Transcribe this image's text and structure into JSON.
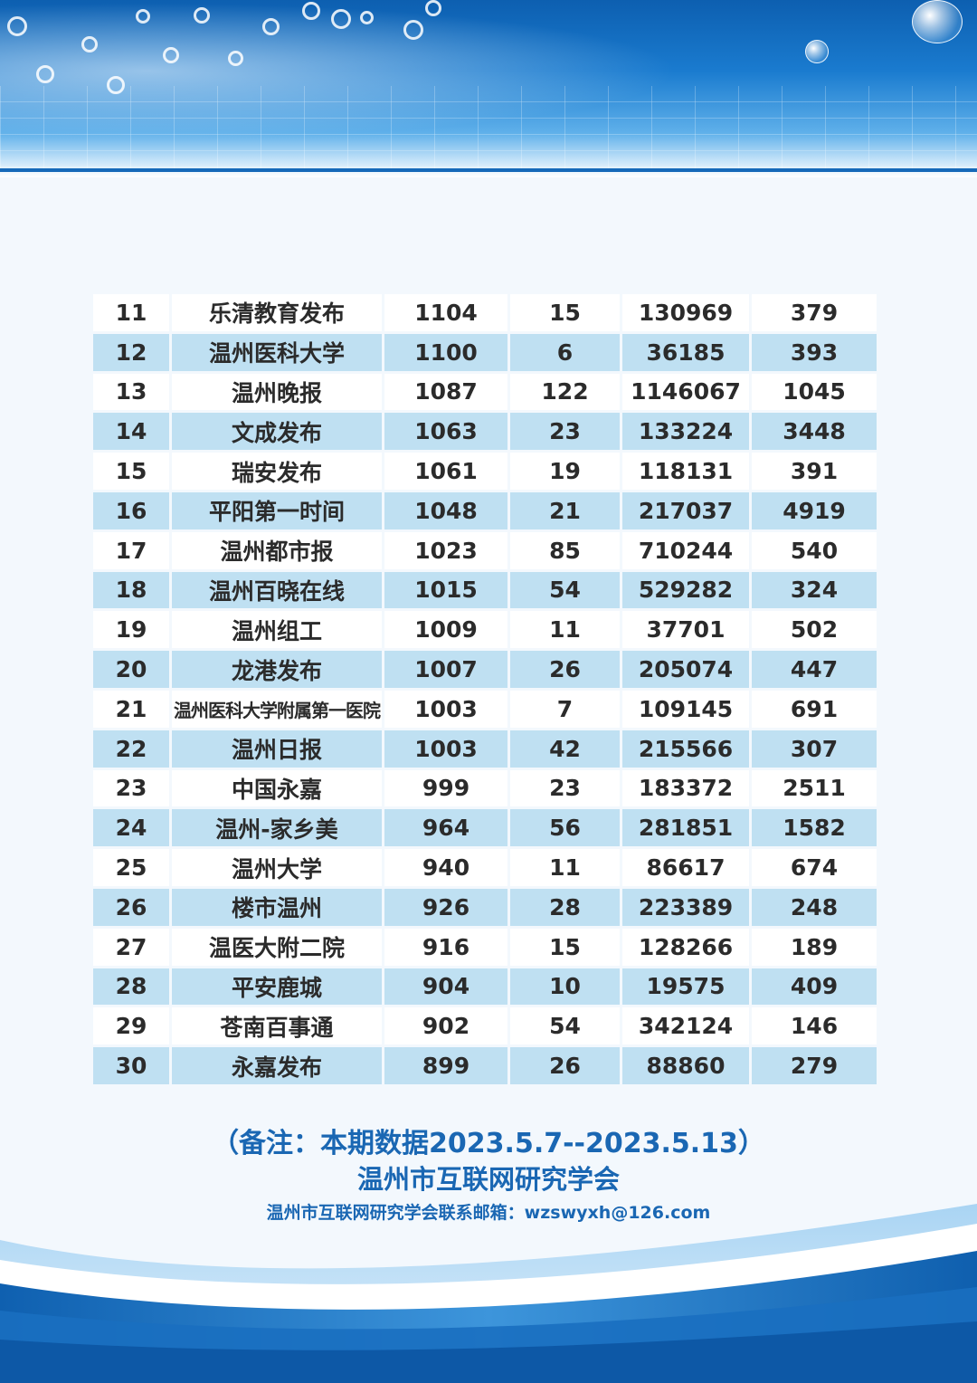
{
  "table": {
    "rows": [
      {
        "rank": "11",
        "name": "乐清教育发布",
        "c2": "1104",
        "c3": "15",
        "c4": "130969",
        "c5": "379"
      },
      {
        "rank": "12",
        "name": "温州医科大学",
        "c2": "1100",
        "c3": "6",
        "c4": "36185",
        "c5": "393"
      },
      {
        "rank": "13",
        "name": "温州晚报",
        "c2": "1087",
        "c3": "122",
        "c4": "1146067",
        "c5": "1045"
      },
      {
        "rank": "14",
        "name": "文成发布",
        "c2": "1063",
        "c3": "23",
        "c4": "133224",
        "c5": "3448"
      },
      {
        "rank": "15",
        "name": "瑞安发布",
        "c2": "1061",
        "c3": "19",
        "c4": "118131",
        "c5": "391"
      },
      {
        "rank": "16",
        "name": "平阳第一时间",
        "c2": "1048",
        "c3": "21",
        "c4": "217037",
        "c5": "4919"
      },
      {
        "rank": "17",
        "name": "温州都市报",
        "c2": "1023",
        "c3": "85",
        "c4": "710244",
        "c5": "540"
      },
      {
        "rank": "18",
        "name": "温州百晓在线",
        "c2": "1015",
        "c3": "54",
        "c4": "529282",
        "c5": "324"
      },
      {
        "rank": "19",
        "name": "温州组工",
        "c2": "1009",
        "c3": "11",
        "c4": "37701",
        "c5": "502"
      },
      {
        "rank": "20",
        "name": "龙港发布",
        "c2": "1007",
        "c3": "26",
        "c4": "205074",
        "c5": "447"
      },
      {
        "rank": "21",
        "name": "温州医科大学附属第一医院",
        "c2": "1003",
        "c3": "7",
        "c4": "109145",
        "c5": "691"
      },
      {
        "rank": "22",
        "name": "温州日报",
        "c2": "1003",
        "c3": "42",
        "c4": "215566",
        "c5": "307"
      },
      {
        "rank": "23",
        "name": "中国永嘉",
        "c2": "999",
        "c3": "23",
        "c4": "183372",
        "c5": "2511"
      },
      {
        "rank": "24",
        "name": "温州-家乡美",
        "c2": "964",
        "c3": "56",
        "c4": "281851",
        "c5": "1582"
      },
      {
        "rank": "25",
        "name": "温州大学",
        "c2": "940",
        "c3": "11",
        "c4": "86617",
        "c5": "674"
      },
      {
        "rank": "26",
        "name": "楼市温州",
        "c2": "926",
        "c3": "28",
        "c4": "223389",
        "c5": "248"
      },
      {
        "rank": "27",
        "name": "温医大附二院",
        "c2": "916",
        "c3": "15",
        "c4": "128266",
        "c5": "189"
      },
      {
        "rank": "28",
        "name": "平安鹿城",
        "c2": "904",
        "c3": "10",
        "c4": "19575",
        "c5": "409"
      },
      {
        "rank": "29",
        "name": "苍南百事通",
        "c2": "902",
        "c3": "54",
        "c4": "342124",
        "c5": "146"
      },
      {
        "rank": "30",
        "name": "永嘉发布",
        "c2": "899",
        "c3": "26",
        "c4": "88860",
        "c5": "279"
      }
    ]
  },
  "footer": {
    "note": "（备注：本期数据2023.5.7--2023.5.13）",
    "org": "温州市互联网研究学会",
    "email": "温州市互联网研究学会联系邮箱：wzswyxh@126.com"
  },
  "colors": {
    "accent_text": "#1a67b3",
    "row_alt": "#bfe0f2",
    "banner": "#1a7bcf"
  }
}
